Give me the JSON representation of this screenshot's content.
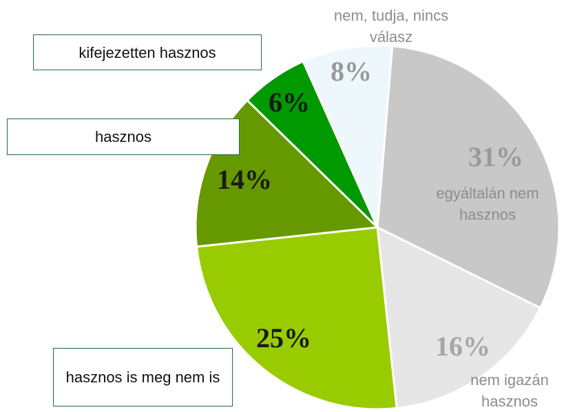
{
  "chart_data": {
    "type": "pie",
    "categories": [
      "egyáltalán nem hasznos",
      "nem igazán hasznos",
      "hasznos is meg nem is",
      "hasznos",
      "kifejezetten hasznos",
      "nem, tudja, nincs válasz"
    ],
    "values": [
      31,
      16,
      25,
      14,
      6,
      8
    ],
    "value_labels": [
      "31%",
      "16%",
      "25%",
      "14%",
      "6%",
      "8%"
    ],
    "colors": [
      "#c8c8c8",
      "#e6e6e6",
      "#99cc00",
      "#669900",
      "#009900",
      "#eef8fc"
    ]
  }
}
